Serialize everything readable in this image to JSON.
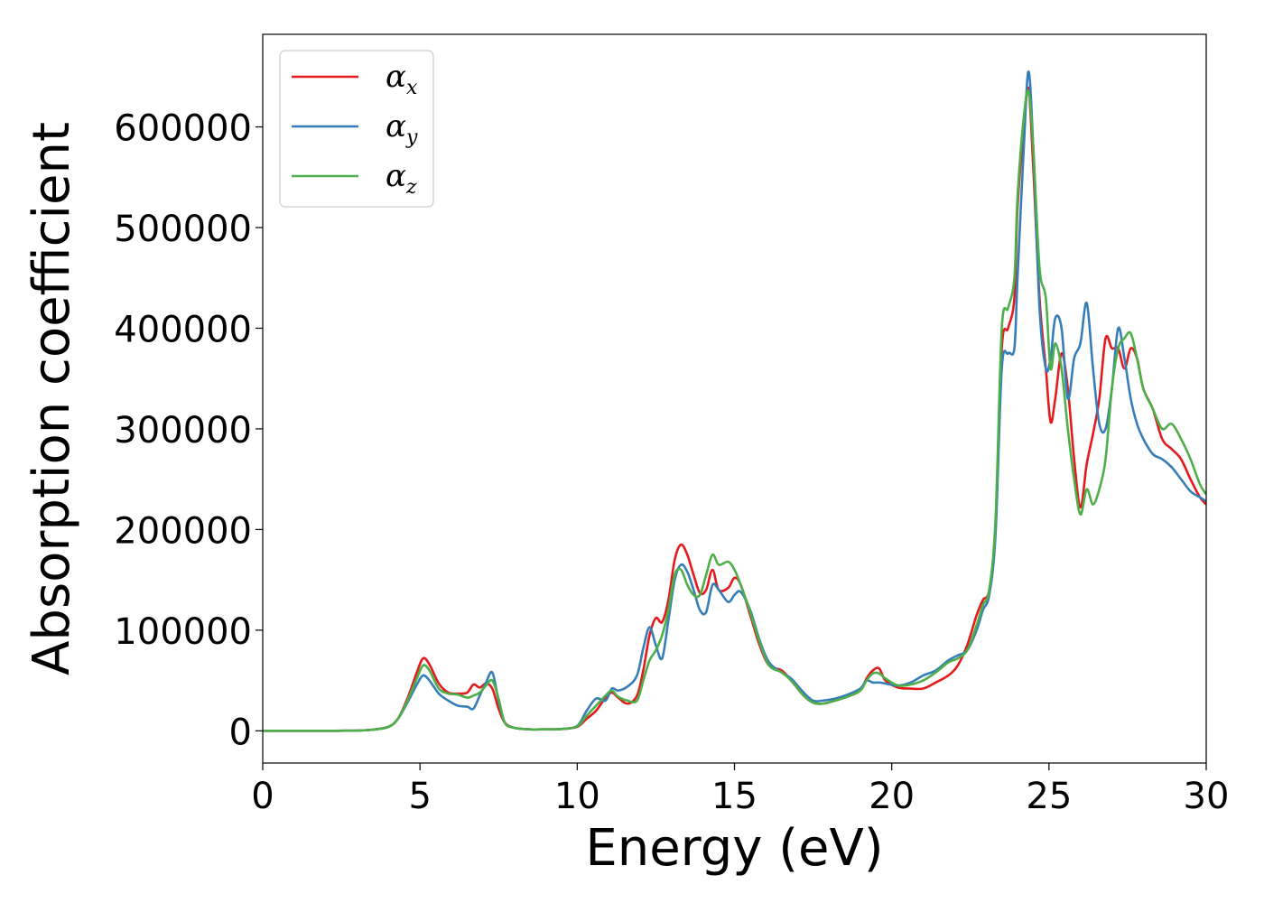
{
  "chart_data": {
    "type": "line",
    "xlabel": "Energy (eV)",
    "ylabel": "Absorption coefficient",
    "xlim": [
      0,
      30
    ],
    "ylim": [
      -32000,
      692000
    ],
    "xticks": [
      0,
      5,
      10,
      15,
      20,
      25,
      30
    ],
    "yticks": [
      0,
      100000,
      200000,
      300000,
      400000,
      500000,
      600000
    ],
    "grid": false,
    "legend": {
      "position": "top-left",
      "entries": [
        {
          "symbol": "α",
          "subscript": "x",
          "color": "#e41a1c"
        },
        {
          "symbol": "α",
          "subscript": "y",
          "color": "#377eb8"
        },
        {
          "symbol": "α",
          "subscript": "z",
          "color": "#4daf4a"
        }
      ]
    },
    "series": [
      {
        "key": "alpha_x",
        "color": "#e41a1c",
        "x": [
          0,
          2,
          3,
          3.5,
          4,
          4.3,
          4.6,
          4.9,
          5.1,
          5.3,
          5.6,
          5.9,
          6.2,
          6.5,
          6.7,
          6.9,
          7.1,
          7.3,
          7.5,
          7.7,
          8,
          8.5,
          9,
          9.5,
          10,
          10.3,
          10.6,
          10.9,
          11.1,
          11.3,
          11.6,
          11.9,
          12.1,
          12.3,
          12.5,
          12.7,
          12.9,
          13.1,
          13.3,
          13.5,
          13.7,
          13.9,
          14.1,
          14.3,
          14.5,
          14.8,
          15.0,
          15.2,
          15.5,
          15.8,
          16.1,
          16.5,
          16.8,
          17.2,
          17.5,
          17.8,
          18.2,
          18.6,
          19.0,
          19.2,
          19.4,
          19.6,
          19.8,
          20.2,
          20.6,
          21.0,
          21.4,
          21.8,
          22.1,
          22.4,
          22.7,
          22.9,
          23.1,
          23.3,
          23.5,
          23.7,
          23.9,
          24.0,
          24.2,
          24.35,
          24.5,
          24.7,
          24.9,
          25.05,
          25.2,
          25.4,
          25.6,
          25.8,
          26.0,
          26.2,
          26.4,
          26.6,
          26.8,
          27.0,
          27.2,
          27.4,
          27.6,
          27.8,
          28.0,
          28.3,
          28.6,
          28.9,
          29.2,
          29.5,
          29.8,
          30
        ],
        "y": [
          0,
          0,
          300,
          1200,
          4000,
          12000,
          32000,
          58000,
          72000,
          66000,
          47000,
          38000,
          37000,
          38000,
          46000,
          43000,
          47000,
          42000,
          22000,
          8000,
          3000,
          1500,
          1500,
          1800,
          4000,
          12000,
          20000,
          33000,
          38000,
          33000,
          27000,
          35000,
          60000,
          95000,
          112000,
          108000,
          130000,
          170000,
          185000,
          175000,
          155000,
          137000,
          140000,
          160000,
          140000,
          142000,
          152000,
          145000,
          115000,
          85000,
          65000,
          60000,
          50000,
          35000,
          28000,
          27000,
          30000,
          34000,
          40000,
          52000,
          60000,
          62000,
          50000,
          43000,
          42000,
          42000,
          48000,
          55000,
          65000,
          85000,
          115000,
          130000,
          140000,
          200000,
          380000,
          400000,
          430000,
          520000,
          600000,
          638000,
          560000,
          430000,
          360000,
          307000,
          330000,
          375000,
          340000,
          270000,
          222000,
          265000,
          295000,
          330000,
          390000,
          380000,
          380000,
          360000,
          380000,
          370000,
          340000,
          320000,
          290000,
          280000,
          270000,
          250000,
          232000,
          225000
        ]
      },
      {
        "key": "alpha_y",
        "color": "#377eb8",
        "x": [
          0,
          2,
          3,
          3.5,
          4,
          4.3,
          4.6,
          4.9,
          5.1,
          5.3,
          5.6,
          5.9,
          6.2,
          6.5,
          6.7,
          6.9,
          7.1,
          7.3,
          7.5,
          7.7,
          8,
          8.5,
          9,
          9.5,
          10,
          10.3,
          10.6,
          10.9,
          11.1,
          11.3,
          11.6,
          11.9,
          12.1,
          12.3,
          12.5,
          12.7,
          12.9,
          13.1,
          13.3,
          13.5,
          13.7,
          13.9,
          14.1,
          14.3,
          14.5,
          14.8,
          15.0,
          15.2,
          15.5,
          15.8,
          16.1,
          16.5,
          16.8,
          17.2,
          17.5,
          17.8,
          18.2,
          18.6,
          19.0,
          19.2,
          19.4,
          19.6,
          19.8,
          20.2,
          20.6,
          21.0,
          21.4,
          21.8,
          22.1,
          22.4,
          22.7,
          22.9,
          23.1,
          23.3,
          23.5,
          23.7,
          23.9,
          24.0,
          24.2,
          24.35,
          24.5,
          24.7,
          24.9,
          25.05,
          25.2,
          25.4,
          25.6,
          25.8,
          26.0,
          26.2,
          26.4,
          26.6,
          26.8,
          27.0,
          27.2,
          27.4,
          27.6,
          27.8,
          28.0,
          28.3,
          28.6,
          28.9,
          29.2,
          29.5,
          29.8,
          30
        ],
        "y": [
          0,
          0,
          300,
          1200,
          4000,
          12000,
          28000,
          46000,
          55000,
          50000,
          37000,
          30000,
          25000,
          24000,
          22000,
          35000,
          48000,
          58000,
          30000,
          8000,
          3000,
          1500,
          1500,
          1800,
          5000,
          20000,
          32000,
          30000,
          42000,
          40000,
          44000,
          55000,
          82000,
          103000,
          85000,
          72000,
          110000,
          150000,
          165000,
          158000,
          140000,
          120000,
          118000,
          145000,
          140000,
          128000,
          135000,
          138000,
          120000,
          90000,
          68000,
          58000,
          52000,
          38000,
          30000,
          30000,
          32000,
          36000,
          42000,
          50000,
          48000,
          48000,
          47000,
          45000,
          48000,
          55000,
          60000,
          70000,
          75000,
          80000,
          100000,
          120000,
          135000,
          195000,
          360000,
          375000,
          380000,
          450000,
          580000,
          655000,
          580000,
          420000,
          360000,
          370000,
          410000,
          400000,
          330000,
          370000,
          385000,
          425000,
          360000,
          305000,
          300000,
          340000,
          400000,
          370000,
          330000,
          305000,
          290000,
          275000,
          270000,
          262000,
          250000,
          238000,
          232000,
          228000
        ]
      },
      {
        "key": "alpha_z",
        "color": "#4daf4a",
        "x": [
          0,
          2,
          3,
          3.5,
          4,
          4.3,
          4.6,
          4.9,
          5.1,
          5.3,
          5.6,
          5.9,
          6.2,
          6.5,
          6.7,
          6.9,
          7.1,
          7.3,
          7.5,
          7.7,
          8,
          8.5,
          9,
          9.5,
          10,
          10.3,
          10.6,
          10.9,
          11.1,
          11.3,
          11.6,
          11.9,
          12.1,
          12.3,
          12.5,
          12.7,
          12.9,
          13.1,
          13.3,
          13.5,
          13.7,
          13.9,
          14.1,
          14.3,
          14.5,
          14.8,
          15.0,
          15.2,
          15.5,
          15.8,
          16.1,
          16.5,
          16.8,
          17.2,
          17.5,
          17.8,
          18.2,
          18.6,
          19.0,
          19.2,
          19.4,
          19.6,
          19.8,
          20.2,
          20.6,
          21.0,
          21.4,
          21.8,
          22.1,
          22.4,
          22.7,
          22.9,
          23.1,
          23.3,
          23.5,
          23.7,
          23.9,
          24.0,
          24.2,
          24.35,
          24.5,
          24.7,
          24.9,
          25.05,
          25.2,
          25.4,
          25.6,
          25.8,
          26.0,
          26.2,
          26.4,
          26.6,
          26.8,
          27.0,
          27.2,
          27.4,
          27.6,
          27.8,
          28.0,
          28.3,
          28.6,
          28.9,
          29.2,
          29.5,
          29.8,
          30
        ],
        "y": [
          0,
          0,
          300,
          1200,
          4000,
          12000,
          30000,
          52000,
          65000,
          60000,
          42000,
          37000,
          36000,
          33000,
          35000,
          38000,
          45000,
          50000,
          32000,
          8000,
          3000,
          1500,
          1500,
          1800,
          4500,
          15000,
          25000,
          35000,
          40000,
          34000,
          30000,
          30000,
          50000,
          70000,
          80000,
          95000,
          120000,
          155000,
          160000,
          145000,
          135000,
          135000,
          155000,
          175000,
          165000,
          168000,
          160000,
          145000,
          118000,
          88000,
          65000,
          58000,
          50000,
          35000,
          28000,
          27000,
          30000,
          34000,
          40000,
          50000,
          57000,
          57000,
          52000,
          45000,
          46000,
          50000,
          58000,
          68000,
          72000,
          80000,
          105000,
          125000,
          140000,
          210000,
          400000,
          420000,
          450000,
          530000,
          610000,
          635000,
          580000,
          460000,
          430000,
          360000,
          385000,
          360000,
          300000,
          250000,
          215000,
          240000,
          225000,
          240000,
          270000,
          340000,
          380000,
          390000,
          395000,
          370000,
          340000,
          320000,
          300000,
          305000,
          290000,
          270000,
          245000,
          235000
        ]
      }
    ]
  }
}
